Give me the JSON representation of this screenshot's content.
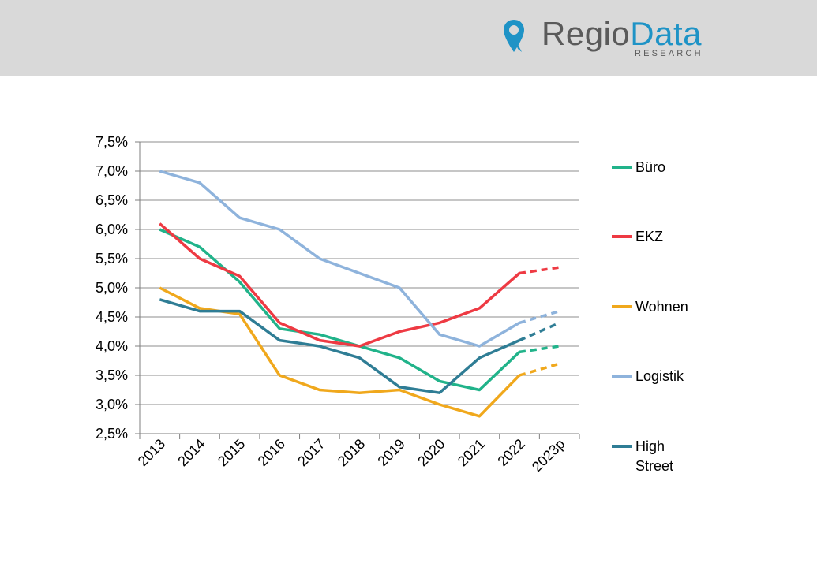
{
  "header": {
    "logo": {
      "name_part1": "Regio",
      "name_part2": "Data",
      "tagline": "RESEARCH"
    }
  },
  "chart_data": {
    "type": "line",
    "categories": [
      "2013",
      "2014",
      "2015",
      "2016",
      "2017",
      "2018",
      "2019",
      "2020",
      "2021",
      "2022",
      "2023p"
    ],
    "y_tick_labels": [
      "2,5%",
      "3,0%",
      "3,5%",
      "4,0%",
      "4,5%",
      "5,0%",
      "5,5%",
      "6,0%",
      "6,5%",
      "7,0%",
      "7,5%"
    ],
    "ylim": [
      2.5,
      7.5
    ],
    "y_unit": "%",
    "grid": true,
    "legend_placement": "right",
    "forecast_style": "dashed from 2022 to 2023p",
    "series": [
      {
        "name": "Büro",
        "color": "#21b38a",
        "values": [
          6.0,
          5.7,
          5.1,
          4.3,
          4.2,
          4.0,
          3.8,
          3.4,
          3.25,
          3.9,
          4.0
        ]
      },
      {
        "name": "EKZ",
        "color": "#ee3a43",
        "values": [
          6.1,
          5.5,
          5.2,
          4.4,
          4.1,
          4.0,
          4.25,
          4.4,
          4.65,
          5.25,
          5.35
        ]
      },
      {
        "name": "Wohnen",
        "color": "#f0a81c",
        "values": [
          5.0,
          4.65,
          4.55,
          3.5,
          3.25,
          3.2,
          3.25,
          3.0,
          2.8,
          3.5,
          3.7
        ]
      },
      {
        "name": "Logistik",
        "color": "#8eb3dc",
        "values": [
          7.0,
          6.8,
          6.2,
          6.0,
          5.5,
          5.25,
          5.0,
          4.2,
          4.0,
          4.4,
          4.6
        ]
      },
      {
        "name": "High Street",
        "color": "#2f7d95",
        "values": [
          4.8,
          4.6,
          4.6,
          4.1,
          4.0,
          3.8,
          3.3,
          3.2,
          3.8,
          4.1,
          4.4
        ]
      }
    ],
    "legend": [
      {
        "line1": "Büro"
      },
      {
        "line1": "EKZ"
      },
      {
        "line1": "Wohnen"
      },
      {
        "line1": "Logistik"
      },
      {
        "line1": "High",
        "line2": "Street"
      }
    ]
  }
}
